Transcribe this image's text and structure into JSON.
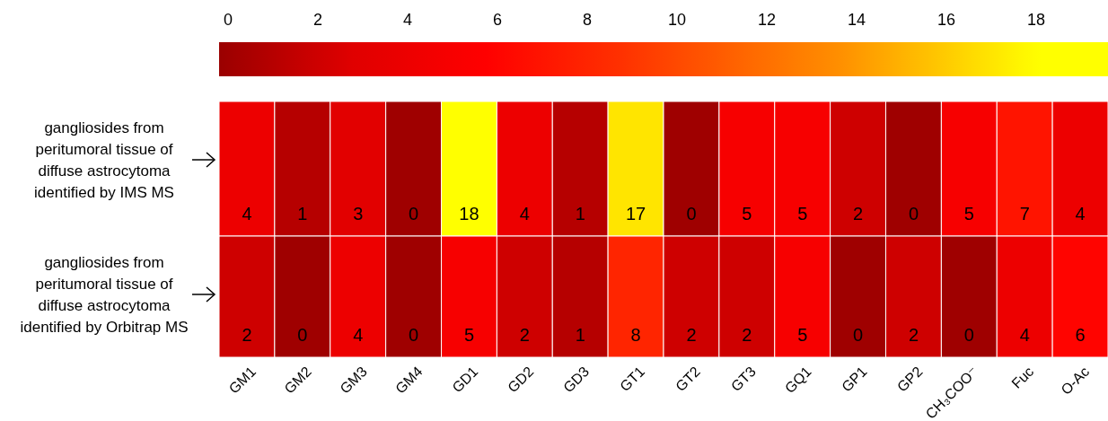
{
  "chart_data": {
    "type": "heatmap",
    "categories": [
      "GM1",
      "GM2",
      "GM3",
      "GM4",
      "GD1",
      "GD2",
      "GD3",
      "GT1",
      "GT2",
      "GT3",
      "GQ1",
      "GP1",
      "GP2",
      "CH₃COO⁻",
      "Fuc",
      "O-Ac"
    ],
    "y_categories": [
      "gangliosides from peritumoral tissue of diffuse astrocytoma identified by IMS MS",
      "gangliosides from peritumoral tissue of diffuse astrocytoma identified by Orbitrap MS"
    ],
    "cells": [
      [
        4,
        1,
        3,
        0,
        18,
        4,
        1,
        17,
        0,
        5,
        5,
        2,
        0,
        5,
        7,
        4
      ],
      [
        2,
        0,
        4,
        0,
        5,
        2,
        1,
        8,
        2,
        2,
        5,
        0,
        2,
        0,
        4,
        6
      ]
    ],
    "clim": [
      -0.2,
      19.6
    ],
    "cticks": [
      0,
      2,
      4,
      6,
      8,
      10,
      12,
      14,
      16,
      18
    ],
    "data_labels": true
  }
}
